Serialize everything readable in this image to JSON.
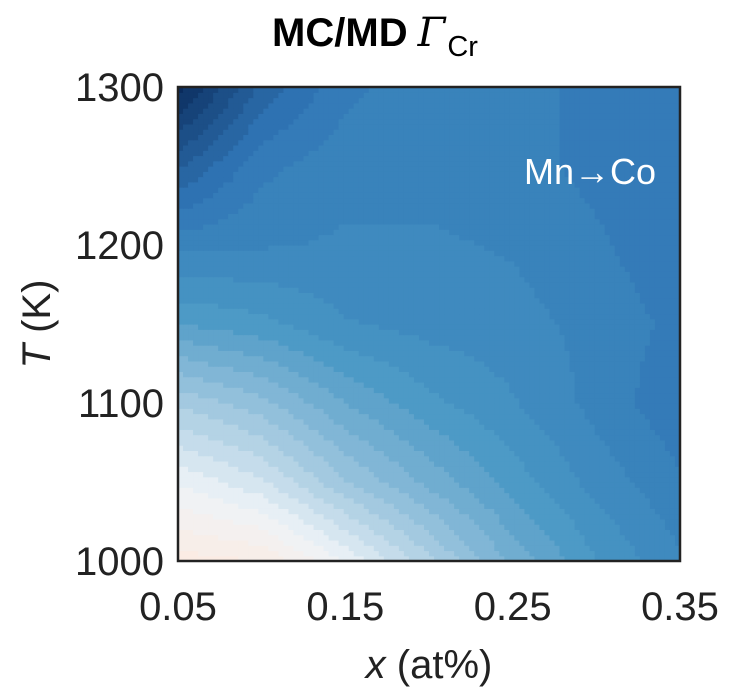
{
  "chart_data": {
    "type": "heatmap",
    "style": "filled-contour",
    "colormap": "blues",
    "title": {
      "prefix": "MC/MD",
      "symbol": "Γ",
      "subscript": "Cr"
    },
    "xlabel": {
      "var": "x",
      "rest": " (at%)"
    },
    "ylabel": {
      "var": "T",
      "rest": " (K)"
    },
    "xlim": [
      0.05,
      0.35
    ],
    "ylim": [
      1000,
      1300
    ],
    "x_ticks": [
      0.05,
      0.15,
      0.25,
      0.35
    ],
    "x_tick_labels": [
      "0.05",
      "0.15",
      "0.25",
      "0.35"
    ],
    "y_ticks": [
      1000,
      1100,
      1200,
      1300
    ],
    "y_tick_labels": [
      "1000",
      "1100",
      "1200",
      "1300"
    ],
    "annotation": "Mn→Co",
    "x": [
      0.05,
      0.1,
      0.15,
      0.2,
      0.25,
      0.3,
      0.35
    ],
    "y": [
      1000,
      1050,
      1100,
      1150,
      1200,
      1250,
      1300
    ],
    "z": [
      [
        0.0,
        0.02,
        0.15,
        0.3,
        0.45,
        0.56,
        0.64
      ],
      [
        0.15,
        0.22,
        0.35,
        0.45,
        0.54,
        0.62,
        0.68
      ],
      [
        0.32,
        0.38,
        0.48,
        0.55,
        0.6,
        0.66,
        0.72
      ],
      [
        0.52,
        0.55,
        0.6,
        0.62,
        0.63,
        0.66,
        0.7
      ],
      [
        0.66,
        0.65,
        0.64,
        0.64,
        0.65,
        0.68,
        0.72
      ],
      [
        0.82,
        0.7,
        0.66,
        0.66,
        0.67,
        0.7,
        0.72
      ],
      [
        1.0,
        0.8,
        0.7,
        0.66,
        0.67,
        0.7,
        0.72
      ]
    ],
    "grid": false,
    "colors": {
      "low": "#fbece4",
      "mid_low": "#eef3f7",
      "mid": "#4a98c5",
      "high": "#2f75b5",
      "max": "#0a2b5c",
      "annotation": "#ffffff",
      "axis": "#222222"
    }
  }
}
